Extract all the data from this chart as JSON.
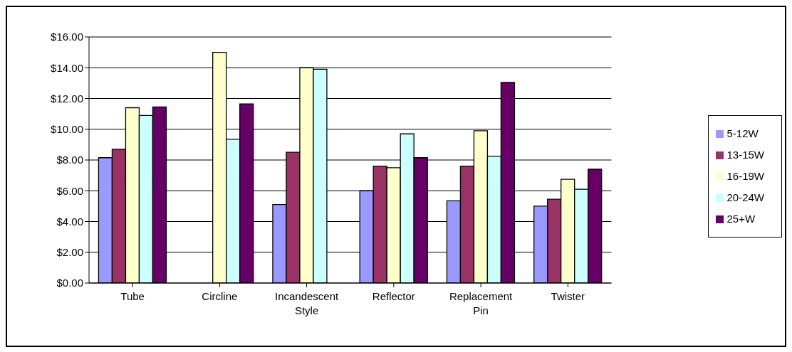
{
  "chart_data": {
    "type": "bar",
    "categories": [
      "Tube",
      "Circline",
      "Incandescent\nStyle",
      "Reflector",
      "Replacement\nPin",
      "Twister"
    ],
    "series": [
      {
        "name": "5-12W",
        "color": "#9999ff",
        "values": [
          8.15,
          null,
          5.1,
          6.0,
          5.35,
          5.0
        ]
      },
      {
        "name": "13-15W",
        "color": "#993366",
        "values": [
          8.7,
          null,
          8.5,
          7.6,
          7.6,
          5.45
        ]
      },
      {
        "name": "16-19W",
        "color": "#ffffcc",
        "values": [
          11.4,
          15.0,
          14.0,
          7.5,
          9.9,
          6.75
        ]
      },
      {
        "name": "20-24W",
        "color": "#ccffff",
        "values": [
          10.9,
          9.35,
          13.9,
          9.7,
          8.25,
          6.1
        ]
      },
      {
        "name": "25+W",
        "color": "#660066",
        "values": [
          11.45,
          11.65,
          null,
          8.15,
          13.05,
          7.4
        ]
      }
    ],
    "ylim": [
      0,
      16
    ],
    "yticks": [
      {
        "value": 0,
        "label": "$0.00"
      },
      {
        "value": 2,
        "label": "$2.00"
      },
      {
        "value": 4,
        "label": "$4.00"
      },
      {
        "value": 6,
        "label": "$6.00"
      },
      {
        "value": 8,
        "label": "$8.00"
      },
      {
        "value": 10,
        "label": "$10.00"
      },
      {
        "value": 12,
        "label": "$12.00"
      },
      {
        "value": 14,
        "label": "$14.00"
      },
      {
        "value": 16,
        "label": "$16.00"
      }
    ],
    "grid": "y",
    "legend": "right"
  }
}
